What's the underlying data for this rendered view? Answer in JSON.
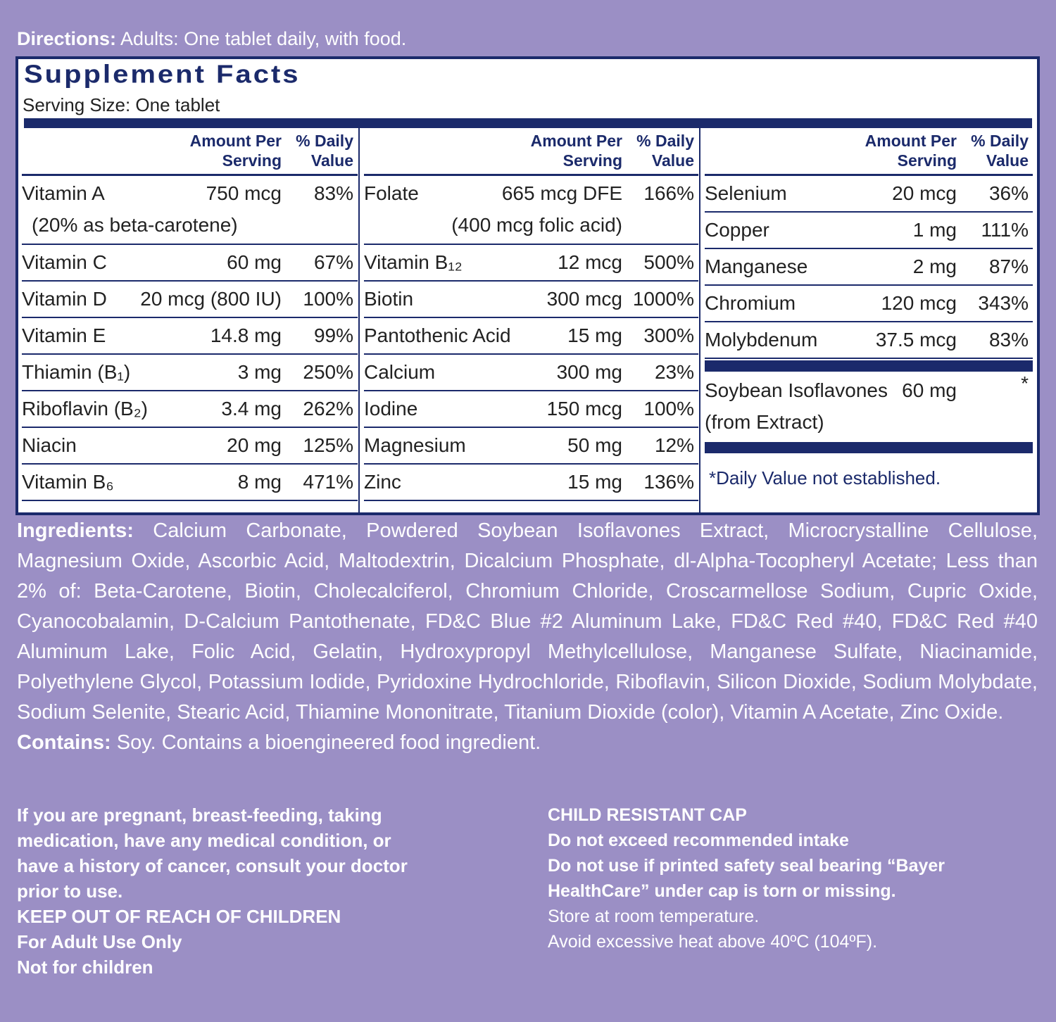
{
  "directions": {
    "label": "Directions:",
    "text": "Adults: One tablet daily, with food."
  },
  "facts": {
    "title": "Supplement Facts",
    "serving_size": "Serving Size: One tablet",
    "columns": [
      {
        "amount_header": "Amount Per Serving",
        "dv_header": "% Daily Value",
        "rows": [
          {
            "name": "Vitamin A",
            "amount": "750 mcg",
            "dv": "83%",
            "name_note": "(20% as beta-carotene)"
          },
          {
            "name": "Vitamin C",
            "amount": "60 mg",
            "dv": "67%"
          },
          {
            "name": "Vitamin D",
            "amount": "20 mcg (800 IU)",
            "dv": "100%"
          },
          {
            "name": "Vitamin E",
            "amount": "14.8 mg",
            "dv": "99%"
          },
          {
            "name": "Thiamin (B₁)",
            "amount": "3 mg",
            "dv": "250%"
          },
          {
            "name": "Riboflavin (B₂)",
            "amount": "3.4 mg",
            "dv": "262%"
          },
          {
            "name": "Niacin",
            "amount": "20 mg",
            "dv": "125%"
          },
          {
            "name": "Vitamin B₆",
            "amount": "8 mg",
            "dv": "471%"
          }
        ]
      },
      {
        "amount_header": "Amount Per Serving",
        "dv_header": "% Daily Value",
        "rows": [
          {
            "name": "Folate",
            "amount": "665 mcg DFE",
            "dv": "166%",
            "amount_note": "(400 mcg folic acid)"
          },
          {
            "name": "Vitamin B₁₂",
            "amount": "12 mcg",
            "dv": "500%"
          },
          {
            "name": "Biotin",
            "amount": "300 mcg",
            "dv": "1000%"
          },
          {
            "name": "Pantothenic Acid",
            "amount": "15 mg",
            "dv": "300%"
          },
          {
            "name": "Calcium",
            "amount": "300 mg",
            "dv": "23%"
          },
          {
            "name": "Iodine",
            "amount": "150 mcg",
            "dv": "100%"
          },
          {
            "name": "Magnesium",
            "amount": "50 mg",
            "dv": "12%"
          },
          {
            "name": "Zinc",
            "amount": "15 mg",
            "dv": "136%"
          }
        ]
      },
      {
        "amount_header": "Amount Per Serving",
        "dv_header": "% Daily Value",
        "rows": [
          {
            "name": "Selenium",
            "amount": "20 mcg",
            "dv": "36%"
          },
          {
            "name": "Copper",
            "amount": "1 mg",
            "dv": "111%"
          },
          {
            "name": "Manganese",
            "amount": "2 mg",
            "dv": "87%"
          },
          {
            "name": "Chromium",
            "amount": "120 mcg",
            "dv": "343%"
          },
          {
            "name": "Molybdenum",
            "amount": "37.5 mcg",
            "dv": "83%"
          }
        ],
        "special_rows": [
          {
            "name": "Soybean Isoflavones",
            "amount": "60 mg",
            "dv": "*",
            "name_note": "(from Extract)"
          }
        ],
        "footnote": "*Daily Value not established."
      }
    ]
  },
  "ingredients": {
    "label": "Ingredients:",
    "text": "Calcium Carbonate, Powdered Soybean Isoflavones Extract, Microcrystalline Cellulose, Magnesium Oxide, Ascorbic Acid, Maltodextrin, Dicalcium Phosphate, dl-Alpha-Tocopheryl Acetate; Less than 2% of: Beta-Carotene, Biotin, Cholecalciferol, Chromium Chloride, Croscarmellose Sodium, Cupric Oxide, Cyanocobalamin, D-Calcium Pantothenate, FD&C Blue #2 Aluminum Lake, FD&C Red #40, FD&C Red #40 Aluminum Lake, Folic Acid, Gelatin, Hydroxypropyl Methylcellulose, Manganese Sulfate, Niacinamide, Polyethylene Glycol, Potassium Iodide, Pyridoxine Hydrochloride, Riboflavin, Silicon Dioxide, Sodium Molybdate, Sodium Selenite, Stearic Acid, Thiamine Mononitrate, Titanium Dioxide (color), Vitamin A Acetate, Zinc Oxide."
  },
  "contains": {
    "label": "Contains:",
    "text": "Soy.  Contains a bioengineered food ingredient."
  },
  "warnings_left": [
    "If you are pregnant, breast-feeding, taking medication, have any medical condition, or have a history of cancer, consult your doctor prior to use.",
    "KEEP OUT OF REACH OF CHILDREN",
    "For Adult Use Only",
    "Not for children"
  ],
  "warnings_right": [
    "CHILD RESISTANT CAP",
    "Do not exceed recommended intake",
    "Do not use if printed safety seal bearing “Bayer HealthCare” under cap is torn or missing."
  ],
  "storage": [
    "Store at room temperature.",
    "Avoid excessive heat above 40ºC (104ºF)."
  ]
}
